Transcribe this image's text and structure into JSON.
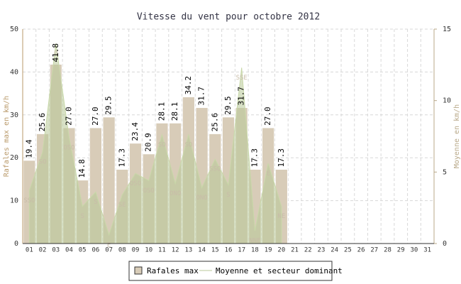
{
  "chart_data": {
    "type": "bar",
    "title": "Vitesse du vent pour octobre 2012",
    "y_label": "Rafales max en km/h",
    "y2_label": "Moyenne en km/h",
    "categories": [
      "01",
      "02",
      "03",
      "04",
      "05",
      "06",
      "07",
      "08",
      "09",
      "10",
      "11",
      "12",
      "13",
      "14",
      "15",
      "16",
      "17",
      "18",
      "19",
      "20",
      "21",
      "22",
      "23",
      "24",
      "25",
      "26",
      "27",
      "28",
      "29",
      "30",
      "31"
    ],
    "series": [
      {
        "name": "Rafales max",
        "color": "#d8ccb8",
        "values": [
          19.4,
          25.6,
          41.8,
          27.0,
          14.8,
          27.0,
          29.5,
          17.3,
          23.4,
          20.9,
          28.1,
          28.1,
          34.2,
          31.7,
          25.6,
          29.5,
          31.7,
          17.3,
          27.0,
          17.3,
          null,
          null,
          null,
          null,
          null,
          null,
          null,
          null,
          null,
          null,
          null
        ],
        "value_labels": [
          "19.4",
          "25.6",
          "41.8",
          "27.0",
          "14.8",
          "27.0",
          "29.5",
          "17.3",
          "23.4",
          "20.9",
          "28.1",
          "28.1",
          "34.2",
          "31.7",
          "25.6",
          "29.5",
          "31.7",
          "17.3",
          "27.0",
          "17.3",
          null,
          null,
          null,
          null,
          null,
          null,
          null,
          null,
          null,
          null,
          null
        ]
      },
      {
        "name": "Moyenne et secteur dominant",
        "color": "#b8c898",
        "axis": "y2",
        "values": [
          3.7,
          6.4,
          14,
          7.4,
          2.6,
          3.6,
          0.6,
          3.4,
          4.9,
          4.4,
          7.6,
          4.2,
          7.6,
          3.9,
          5.9,
          4.1,
          12.3,
          0.9,
          5.6,
          2.6,
          null,
          null,
          null,
          null,
          null,
          null,
          null,
          null,
          null,
          null,
          null
        ],
        "labels": [
          "SSO",
          "SO",
          "O",
          "OSO",
          "S",
          "S",
          "E",
          "SE",
          "OSO",
          "OSO",
          "SO",
          "ONO",
          "SO",
          "ONO",
          "SSO",
          "S",
          "SSE",
          "NNE",
          "E",
          "NE",
          null,
          null,
          null,
          null,
          null,
          null,
          null,
          null,
          null,
          null,
          null
        ]
      }
    ],
    "ylim": [
      0,
      50
    ],
    "yticks": [
      0,
      10,
      20,
      30,
      40,
      50
    ],
    "y2lim": [
      0,
      15
    ],
    "y2ticks": [
      0,
      5,
      10,
      15
    ],
    "grid": true,
    "legend": "bottom"
  }
}
